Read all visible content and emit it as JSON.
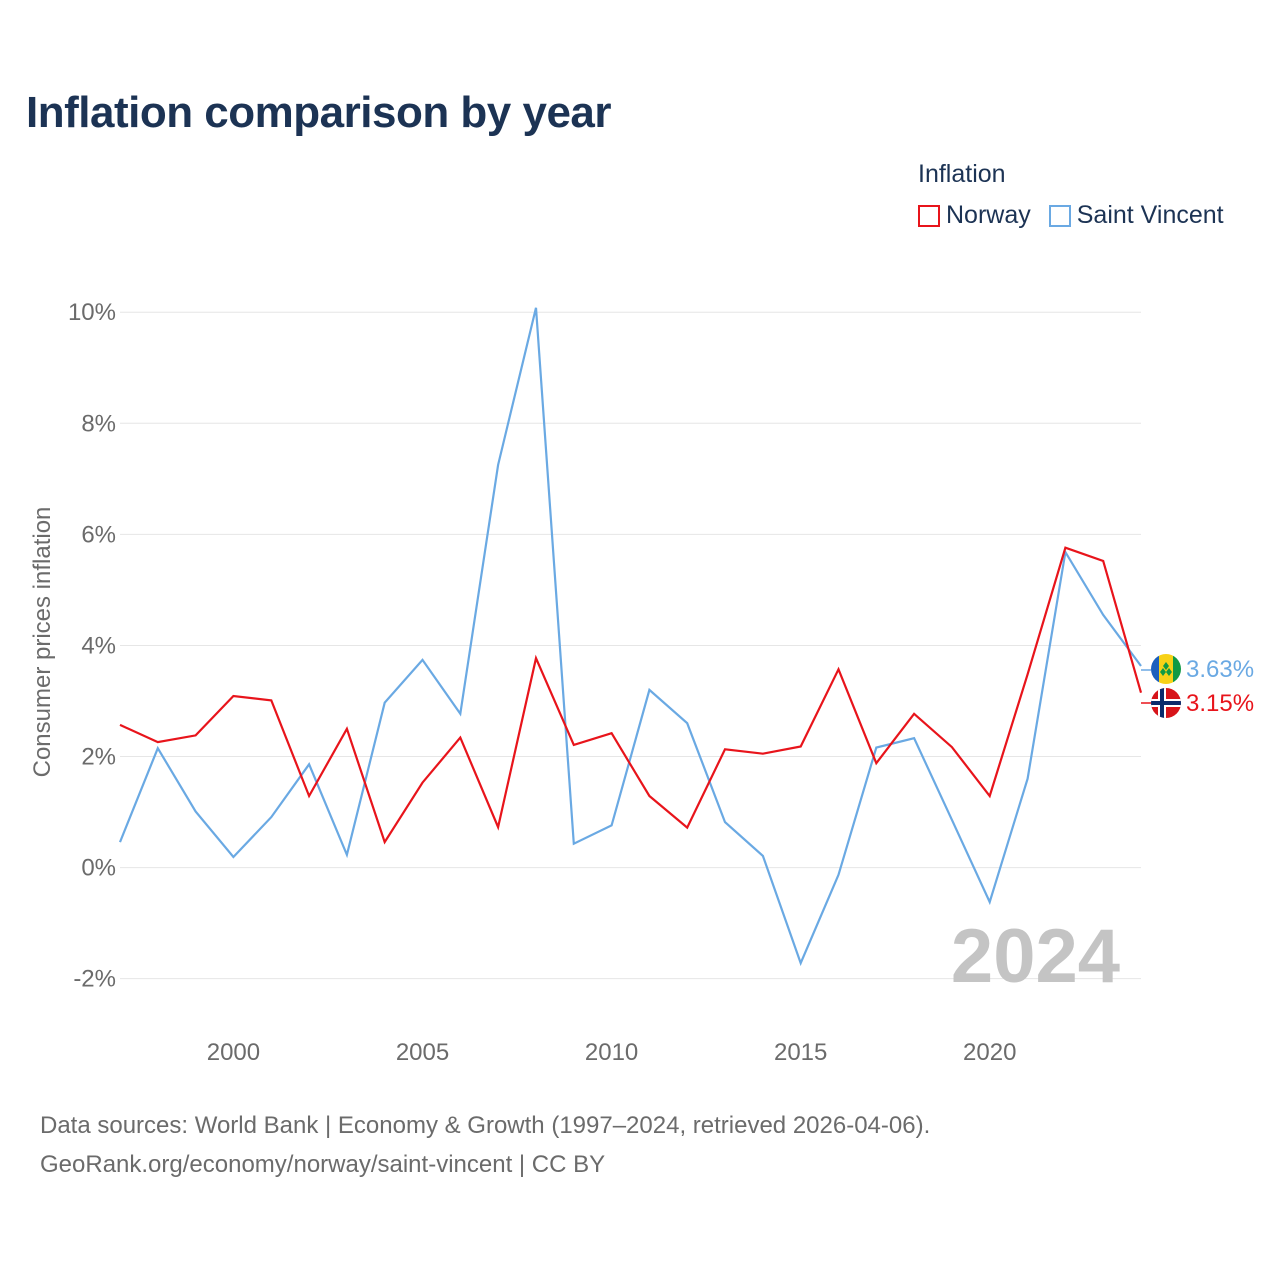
{
  "title": "Inflation comparison by year",
  "legend": {
    "title": "Inflation",
    "items": [
      {
        "label": "Norway",
        "color": "#e8141b"
      },
      {
        "label": "Saint Vincent",
        "color": "#6aa9e3"
      }
    ]
  },
  "watermark_year": "2024",
  "end_labels": {
    "saint_vincent": "3.63%",
    "norway": "3.15%"
  },
  "source": {
    "line1": "Data sources: World Bank | Economy & Growth (1997–2024, retrieved 2026-04-06).",
    "line2": "GeoRank.org/economy/norway/saint-vincent | CC BY"
  },
  "chart_data": {
    "type": "line",
    "title": "Inflation comparison by year",
    "xlabel": "",
    "ylabel": "Consumer prices inflation",
    "x": [
      1997,
      1998,
      1999,
      2000,
      2001,
      2002,
      2003,
      2004,
      2005,
      2006,
      2007,
      2008,
      2009,
      2010,
      2011,
      2012,
      2013,
      2014,
      2015,
      2016,
      2017,
      2018,
      2019,
      2020,
      2021,
      2022,
      2023,
      2024
    ],
    "xlim": [
      1997,
      2024
    ],
    "ylim": [
      -2.6,
      10.4
    ],
    "xticks": [
      2000,
      2005,
      2010,
      2015,
      2020
    ],
    "yticks": [
      -2,
      0,
      2,
      4,
      6,
      8,
      10
    ],
    "ytick_labels": [
      "-2%",
      "0%",
      "2%",
      "4%",
      "6%",
      "8%",
      "10%"
    ],
    "grid": true,
    "legend_position": "top-right",
    "series": [
      {
        "name": "Norway",
        "color": "#e8141b",
        "values": [
          2.57,
          2.26,
          2.38,
          3.09,
          3.01,
          1.29,
          2.5,
          0.46,
          1.53,
          2.34,
          0.73,
          3.77,
          2.21,
          2.42,
          1.29,
          0.72,
          2.13,
          2.05,
          2.18,
          3.57,
          1.88,
          2.77,
          2.17,
          1.29,
          3.48,
          5.76,
          5.52,
          3.15
        ]
      },
      {
        "name": "Saint Vincent",
        "color": "#6aa9e3",
        "values": [
          0.46,
          2.15,
          1.01,
          0.19,
          0.91,
          1.86,
          0.23,
          2.97,
          3.74,
          2.77,
          7.25,
          10.08,
          0.43,
          0.76,
          3.2,
          2.6,
          0.82,
          0.21,
          -1.72,
          -0.13,
          2.16,
          2.33,
          0.86,
          -0.62,
          1.6,
          5.68,
          4.55,
          3.63
        ]
      }
    ]
  }
}
